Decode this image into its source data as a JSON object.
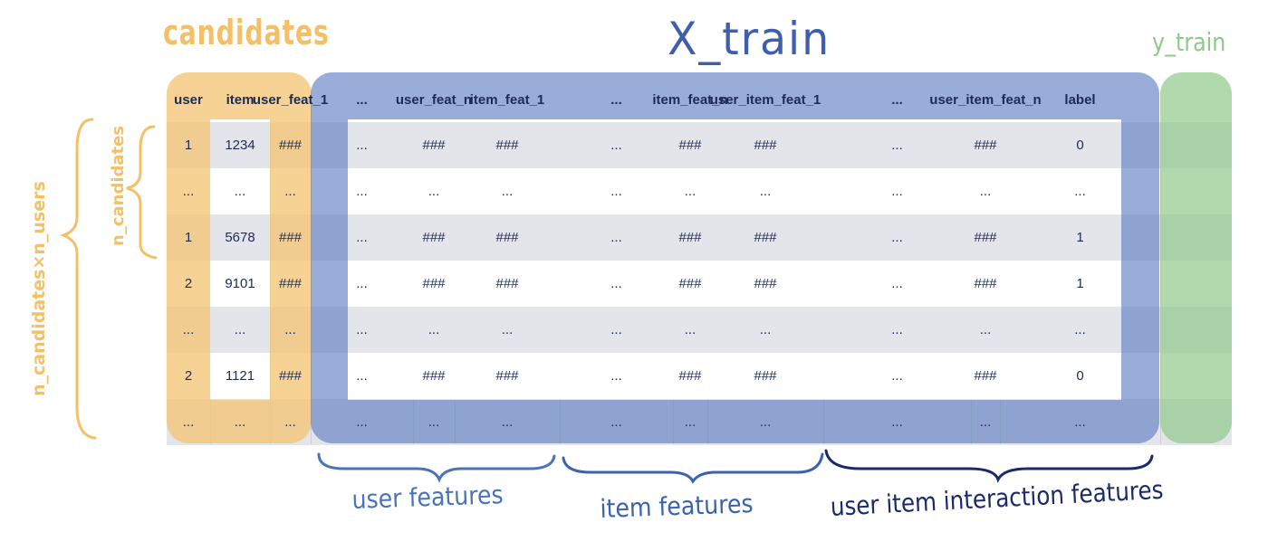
{
  "titles": {
    "candidates": "candidates",
    "x_train": "X_train",
    "y_train": "y_train"
  },
  "braces": {
    "n_candidates": "n_candidates",
    "n_candidates_x_n_users": "n_candidates×n_users",
    "user_features": "user features",
    "item_features": "item features",
    "user_item_interaction_features": "user item interaction features"
  },
  "columns": [
    "user",
    "item",
    "user_feat_1",
    "...",
    "user_feat_n",
    "item_feat_1",
    "...",
    "item_feat_n",
    "user_item_feat_1",
    "...",
    "user_item_feat_n",
    "label"
  ],
  "rows": [
    [
      "1",
      "1234",
      "###",
      "...",
      "###",
      "###",
      "...",
      "###",
      "###",
      "...",
      "###",
      "0"
    ],
    [
      "...",
      "...",
      "...",
      "...",
      "...",
      "...",
      "...",
      "...",
      "...",
      "...",
      "...",
      "..."
    ],
    [
      "1",
      "5678",
      "###",
      "...",
      "###",
      "###",
      "...",
      "###",
      "###",
      "...",
      "###",
      "1"
    ],
    [
      "2",
      "9101",
      "###",
      "...",
      "###",
      "###",
      "...",
      "###",
      "###",
      "...",
      "###",
      "1"
    ],
    [
      "...",
      "...",
      "...",
      "...",
      "...",
      "...",
      "...",
      "...",
      "...",
      "...",
      "...",
      "..."
    ],
    [
      "2",
      "1121",
      "###",
      "...",
      "###",
      "###",
      "...",
      "###",
      "###",
      "...",
      "###",
      "0"
    ],
    [
      "...",
      "...",
      "...",
      "...",
      "...",
      "...",
      "...",
      "...",
      "...",
      "...",
      "...",
      "..."
    ]
  ],
  "colors": {
    "candidates": "#f3c577",
    "x_train": "#5b7ac0",
    "y_train": "#8fc98a",
    "brace_light": "#4a73b8",
    "brace_dark": "#1c2a6b"
  }
}
